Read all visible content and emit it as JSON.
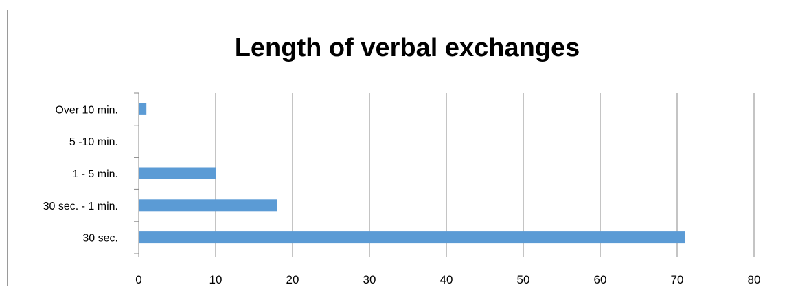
{
  "chart_data": {
    "type": "bar",
    "orientation": "horizontal",
    "title": "Length of verbal exchanges",
    "xlabel": "",
    "ylabel": "",
    "categories": [
      "Over 10 min.",
      "5 -10 min.",
      "1 - 5 min.",
      "30 sec. - 1 min.",
      "30 sec."
    ],
    "values": [
      1,
      0,
      10,
      18,
      71
    ],
    "xlim": [
      0,
      80
    ],
    "xticks": [
      "0",
      "10",
      "20",
      "30",
      "40",
      "50",
      "60",
      "70",
      "80"
    ],
    "grid": "vertical",
    "legend": "none",
    "bar_color": "#5B9BD5",
    "grid_color": "#888888"
  }
}
